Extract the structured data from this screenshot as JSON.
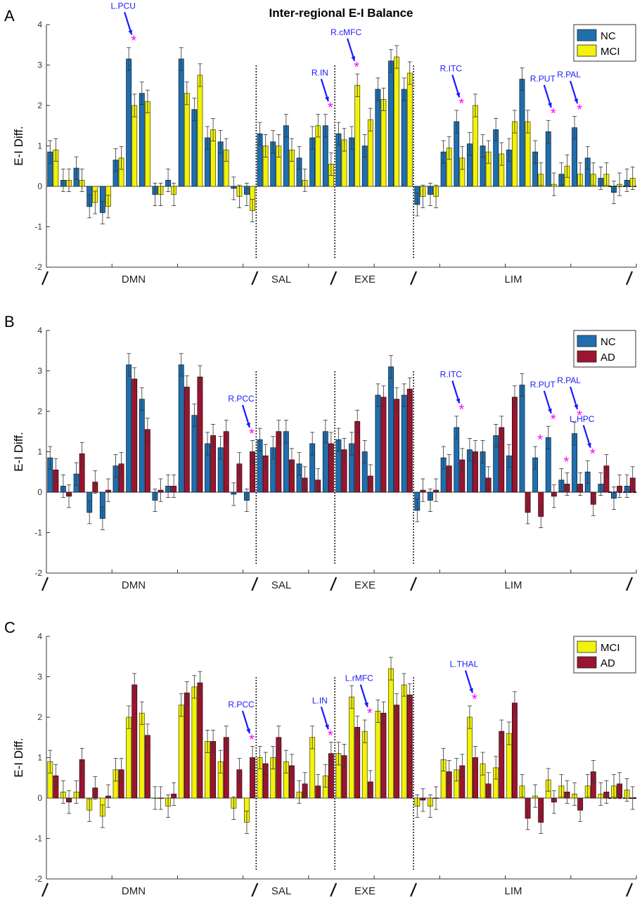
{
  "title": "Inter-regional E-I Balance",
  "colors": {
    "NC": "#1f6fb0",
    "MCI": "#f2f20a",
    "AD": "#9b1530",
    "annotation": "#1a1aff",
    "star": "#ff00ff"
  },
  "chart_data": [
    {
      "type": "bar",
      "panel_label": "A",
      "ylabel": "E-I Diff.",
      "ylim": [
        -2,
        4
      ],
      "yticks": [
        "4",
        "3",
        "2",
        "1",
        "0",
        "-1",
        "-2"
      ],
      "network_labels": [
        "DMN",
        "SAL",
        "EXE",
        "LIM"
      ],
      "legend_position": "top-right",
      "series": [
        {
          "name": "NC",
          "color_key": "NC",
          "values": [
            0.85,
            0.15,
            0.45,
            -0.5,
            -0.65,
            0.65,
            3.15,
            2.3,
            -0.2,
            0.15,
            3.15,
            1.9,
            1.2,
            1.1,
            -0.05,
            -0.2,
            1.3,
            1.1,
            1.5,
            0.7,
            1.2,
            1.5,
            1.3,
            1.2,
            1.0,
            2.4,
            3.1,
            2.4,
            -0.45,
            -0.2,
            0.85,
            1.6,
            1.05,
            1.0,
            1.4,
            0.9,
            2.65,
            0.85,
            1.35,
            0.3,
            1.45,
            0.7,
            0.2,
            -0.15,
            0.15
          ]
        },
        {
          "name": "MCI",
          "color_key": "MCI",
          "values": [
            0.9,
            0.15,
            0.15,
            -0.4,
            -0.5,
            0.7,
            2.0,
            2.1,
            -0.2,
            -0.2,
            2.3,
            2.75,
            1.4,
            0.9,
            -0.25,
            -0.6,
            1.0,
            1.0,
            0.9,
            0.15,
            1.5,
            0.55,
            1.15,
            2.5,
            1.65,
            2.15,
            3.2,
            2.8,
            -0.25,
            -0.25,
            0.95,
            0.7,
            2.0,
            0.85,
            0.8,
            1.6,
            1.6,
            0.3,
            0.05,
            0.5,
            0.3,
            0.3,
            0.3,
            0.05,
            0.2
          ]
        }
      ],
      "annotations": [
        {
          "label": "L.PCU",
          "region_index": 6
        },
        {
          "label": "R.IN",
          "region_index": 21
        },
        {
          "label": "R.cMFC",
          "region_index": 23
        },
        {
          "label": "R.ITC",
          "region_index": 31
        },
        {
          "label": "R.PUT",
          "region_index": 38
        },
        {
          "label": "R.PAL",
          "region_index": 40
        }
      ],
      "star_regions": [
        6,
        21,
        23,
        31,
        38,
        40
      ]
    },
    {
      "type": "bar",
      "panel_label": "B",
      "ylabel": "E-I Diff.",
      "ylim": [
        -2,
        4
      ],
      "yticks": [
        "4",
        "3",
        "2",
        "1",
        "0",
        "-1",
        "-2"
      ],
      "network_labels": [
        "DMN",
        "SAL",
        "EXE",
        "LIM"
      ],
      "legend_position": "top-right",
      "series": [
        {
          "name": "NC",
          "color_key": "NC",
          "values": [
            0.85,
            0.15,
            0.45,
            -0.5,
            -0.65,
            0.65,
            3.15,
            2.3,
            -0.2,
            0.15,
            3.15,
            1.9,
            1.2,
            1.1,
            -0.05,
            -0.2,
            1.3,
            1.1,
            1.5,
            0.7,
            1.2,
            1.5,
            1.3,
            1.2,
            1.0,
            2.4,
            3.1,
            2.4,
            -0.45,
            -0.2,
            0.85,
            1.6,
            1.05,
            1.0,
            1.4,
            0.9,
            2.65,
            0.85,
            1.35,
            0.3,
            1.45,
            0.5,
            0.2,
            -0.15,
            0.15
          ]
        },
        {
          "name": "AD",
          "color_key": "AD",
          "values": [
            0.55,
            -0.1,
            0.95,
            0.25,
            0.05,
            0.7,
            2.8,
            1.55,
            0.05,
            0.15,
            2.6,
            2.85,
            1.4,
            1.5,
            0.7,
            1.0,
            0.9,
            1.5,
            0.8,
            0.35,
            0.3,
            1.2,
            1.05,
            1.75,
            0.4,
            2.35,
            2.3,
            2.55,
            0.05,
            0.05,
            0.65,
            0.8,
            1.0,
            0.35,
            1.6,
            2.35,
            -0.5,
            -0.6,
            -0.1,
            0.2,
            0.2,
            -0.3,
            0.65,
            0.15,
            0.35
          ]
        }
      ],
      "annotations": [
        {
          "label": "R.PCC",
          "region_index": 15
        },
        {
          "label": "R.ITC",
          "region_index": 31
        },
        {
          "label": "R.PUT",
          "region_index": 38
        },
        {
          "label": "R.PAL",
          "region_index": 40
        },
        {
          "label": "L.HPC",
          "region_index": 41
        }
      ],
      "star_regions": [
        15,
        31,
        37,
        38,
        39,
        40,
        41
      ]
    },
    {
      "type": "bar",
      "panel_label": "C",
      "ylabel": "E-I Diff.",
      "ylim": [
        -2,
        4
      ],
      "yticks": [
        "4",
        "3",
        "2",
        "1",
        "0",
        "-1",
        "-2"
      ],
      "network_labels": [
        "DMN",
        "SAL",
        "EXE",
        "LIM"
      ],
      "legend_position": "top-right",
      "series": [
        {
          "name": "MCI",
          "color_key": "MCI",
          "values": [
            0.9,
            0.15,
            0.15,
            -0.3,
            -0.45,
            0.7,
            2.0,
            2.1,
            0.0,
            -0.2,
            2.3,
            2.75,
            1.4,
            0.9,
            -0.25,
            -0.6,
            1.0,
            1.0,
            0.9,
            0.15,
            1.5,
            0.55,
            1.1,
            2.5,
            1.65,
            2.15,
            3.2,
            2.8,
            -0.2,
            -0.2,
            0.95,
            0.7,
            2.0,
            0.85,
            0.75,
            1.6,
            0.3,
            0.05,
            0.45,
            0.3,
            0.1,
            0.3,
            0.1,
            0.3,
            0.2
          ]
        },
        {
          "name": "AD",
          "color_key": "AD",
          "values": [
            0.55,
            -0.1,
            0.95,
            0.25,
            0.05,
            0.7,
            2.8,
            1.55,
            0.0,
            0.1,
            2.6,
            2.85,
            1.4,
            1.5,
            0.7,
            1.0,
            0.85,
            1.5,
            0.8,
            0.35,
            0.3,
            1.1,
            1.05,
            1.75,
            0.4,
            2.1,
            2.3,
            2.55,
            -0.05,
            0.0,
            0.65,
            0.8,
            1.0,
            0.35,
            1.65,
            2.35,
            -0.5,
            -0.6,
            -0.1,
            0.15,
            -0.3,
            0.65,
            0.15,
            0.35,
            0.0
          ]
        }
      ],
      "annotations": [
        {
          "label": "R.PCC",
          "region_index": 15
        },
        {
          "label": "L.IN",
          "region_index": 21
        },
        {
          "label": "L.rMFC",
          "region_index": 24
        },
        {
          "label": "L.THAL",
          "region_index": 32
        }
      ],
      "star_regions": [
        15,
        21,
        24,
        32
      ]
    }
  ]
}
